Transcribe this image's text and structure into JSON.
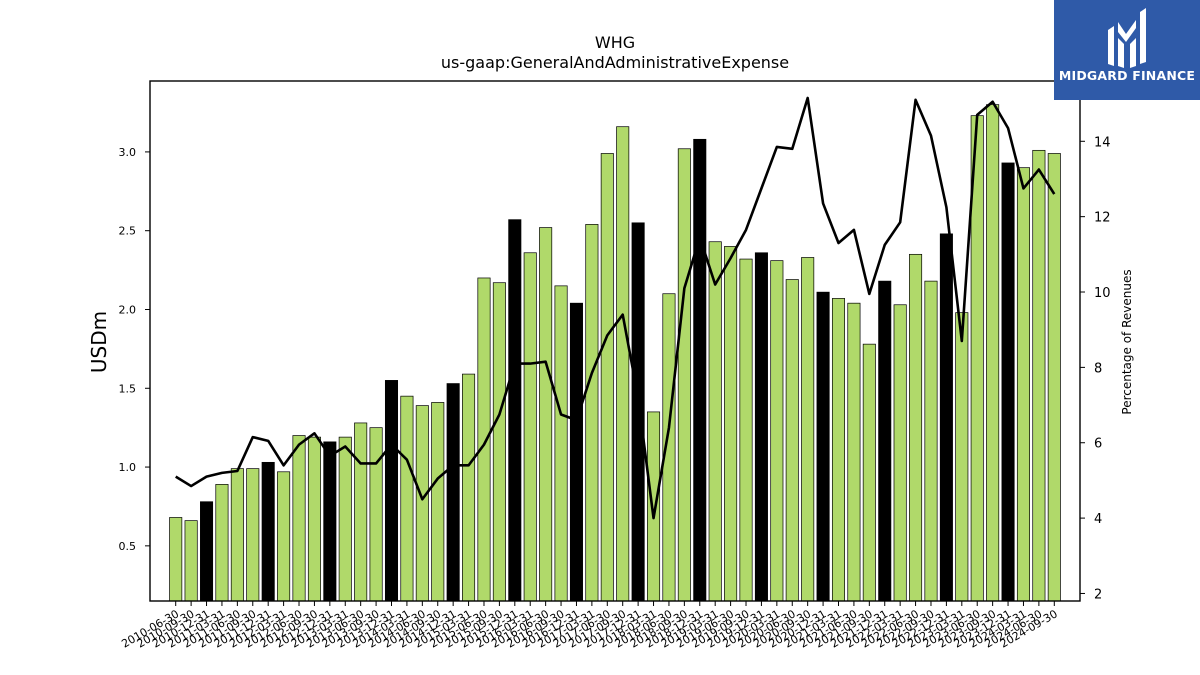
{
  "brand": {
    "name": "MIDGARD FINANCE",
    "color": "#2f5aa8"
  },
  "chart_data": {
    "type": "bar",
    "title": "WHG",
    "subtitle": "us-gaap:GeneralAndAdministrativeExpense",
    "ylabel": "USDm",
    "y2label": "Percentage of Revenues",
    "ylim": [
      0.15,
      3.45
    ],
    "y2lim": [
      1.8,
      15.6
    ],
    "yticks": [
      0.5,
      1.0,
      1.5,
      2.0,
      2.5,
      3.0
    ],
    "y2ticks": [
      2,
      4,
      6,
      8,
      10,
      12,
      14
    ],
    "bar_color": "#b0d96a",
    "highlight_color": "#000000",
    "line_color": "#000000",
    "categories": [
      "2010-06-30",
      "2010-09-30",
      "2010-12-31",
      "2011-03-31",
      "2011-06-30",
      "2011-09-30",
      "2011-12-31",
      "2012-03-31",
      "2012-06-30",
      "2012-09-30",
      "2012-12-31",
      "2013-03-31",
      "2013-06-30",
      "2013-09-30",
      "2013-12-31",
      "2014-03-31",
      "2014-06-30",
      "2014-09-30",
      "2014-12-31",
      "2015-03-31",
      "2015-06-30",
      "2015-09-30",
      "2015-12-31",
      "2016-03-31",
      "2016-06-30",
      "2016-09-30",
      "2016-12-31",
      "2017-03-31",
      "2017-06-30",
      "2017-09-30",
      "2017-12-31",
      "2018-03-31",
      "2018-06-30",
      "2018-09-30",
      "2018-12-31",
      "2019-03-31",
      "2019-06-30",
      "2019-09-30",
      "2019-12-31",
      "2020-03-31",
      "2020-06-30",
      "2020-09-30",
      "2020-12-31",
      "2021-03-31",
      "2021-06-30",
      "2021-09-30",
      "2021-12-31",
      "2022-03-31",
      "2022-06-30",
      "2022-09-30",
      "2022-12-31",
      "2023-03-31",
      "2023-06-30",
      "2023-09-30",
      "2023-12-31",
      "2024-03-31",
      "2024-06-30",
      "2024-09-30"
    ],
    "series": [
      {
        "values": [
          0.68,
          0.66,
          0.78,
          0.89,
          0.99,
          0.99,
          1.03,
          0.97,
          1.2,
          1.19,
          1.16,
          1.19,
          1.28,
          1.25,
          1.55,
          1.45,
          1.39,
          1.41,
          1.53,
          1.59,
          2.2,
          2.17,
          2.57,
          2.36,
          2.52,
          2.15,
          2.04,
          2.54,
          2.99,
          3.16,
          2.55,
          1.35,
          2.1,
          3.02,
          3.08,
          2.43,
          2.4,
          2.32,
          2.36,
          2.31,
          2.19,
          2.33,
          2.11,
          2.07,
          2.04,
          1.78,
          2.18,
          2.03,
          2.35,
          2.18,
          2.48,
          1.98,
          3.23,
          3.3,
          2.93,
          2.9,
          3.01,
          2.99
        ],
        "highlight": [
          false,
          false,
          true,
          false,
          false,
          false,
          true,
          false,
          false,
          false,
          true,
          false,
          false,
          false,
          true,
          false,
          false,
          false,
          true,
          false,
          false,
          false,
          true,
          false,
          false,
          false,
          true,
          false,
          false,
          false,
          true,
          false,
          false,
          false,
          true,
          false,
          false,
          false,
          true,
          false,
          false,
          false,
          true,
          false,
          false,
          false,
          true,
          false,
          false,
          false,
          true,
          false,
          false,
          false,
          true,
          false,
          false,
          false
        ]
      },
      {
        "axis": "right",
        "type": "line",
        "values": [
          5.1,
          4.85,
          5.1,
          5.2,
          5.25,
          6.15,
          6.05,
          5.4,
          5.95,
          6.25,
          5.65,
          5.9,
          5.45,
          5.45,
          5.95,
          5.55,
          4.5,
          5.05,
          5.4,
          5.4,
          5.95,
          6.75,
          8.1,
          8.1,
          8.15,
          6.75,
          6.6,
          7.85,
          8.85,
          9.4,
          7.2,
          4.0,
          6.4,
          10.1,
          11.45,
          10.2,
          10.9,
          11.65,
          12.75,
          13.85,
          13.8,
          15.15,
          12.35,
          11.3,
          11.65,
          9.95,
          11.25,
          11.85,
          15.1,
          14.15,
          12.25,
          8.7,
          14.7,
          15.05,
          14.35,
          12.75,
          13.25,
          12.6
        ]
      }
    ]
  }
}
